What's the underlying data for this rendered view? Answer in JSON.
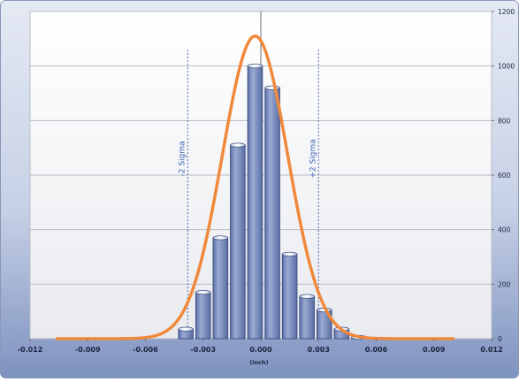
{
  "chart_data": {
    "type": "bar",
    "xlabel": "(inch)",
    "ylabel": "",
    "xlim": [
      -0.012,
      0.012
    ],
    "ylim": [
      0,
      1200
    ],
    "x_ticks": [
      {
        "value": -0.012,
        "label": "-0.012"
      },
      {
        "value": -0.009,
        "label": "-0.009"
      },
      {
        "value": -0.006,
        "label": "-0.006"
      },
      {
        "value": -0.003,
        "label": "-0.003"
      },
      {
        "value": 0.0,
        "label": "0.000"
      },
      {
        "value": 0.003,
        "label": "0.003"
      },
      {
        "value": 0.006,
        "label": "0.006"
      },
      {
        "value": 0.009,
        "label": "0.009"
      },
      {
        "value": 0.012,
        "label": "0.012"
      }
    ],
    "y_ticks": [
      {
        "value": 0,
        "label": "0"
      },
      {
        "value": 200,
        "label": "200"
      },
      {
        "value": 400,
        "label": "400"
      },
      {
        "value": 600,
        "label": "600"
      },
      {
        "value": 800,
        "label": "800"
      },
      {
        "value": 1000,
        "label": "1000"
      },
      {
        "value": 1200,
        "label": "1200"
      }
    ],
    "grid": true,
    "bin_width": 0.0009,
    "bins": [
      -0.0039,
      -0.003,
      -0.0021,
      -0.0012,
      -0.0003,
      0.0006,
      0.0015,
      0.0024,
      0.0033,
      0.0042,
      0.0051
    ],
    "values": [
      35,
      170,
      370,
      710,
      1000,
      920,
      310,
      155,
      105,
      35,
      5
    ],
    "fit_curve": {
      "color": "#f0893c",
      "peak": 1110,
      "mean": -0.0003,
      "sigma": 0.0017,
      "x_range": [
        -0.0106,
        0.01
      ]
    },
    "sigma_lines": [
      {
        "value": -0.0038,
        "label": "-2 Sigma"
      },
      {
        "value": 0.003,
        "label": "+2 Sigma"
      }
    ],
    "colors": {
      "bar_fill": "#7b8fbd",
      "bar_edge": "#3f5185",
      "plot_bg_top": "#ffffff",
      "plot_bg_bottom": "#ebedf1",
      "frame_bg_top": "#e4e9f3",
      "frame_bg_bottom": "#7e92c0",
      "sigma_line": "#4c66aa",
      "sigma_text": "#3f63b5"
    }
  }
}
